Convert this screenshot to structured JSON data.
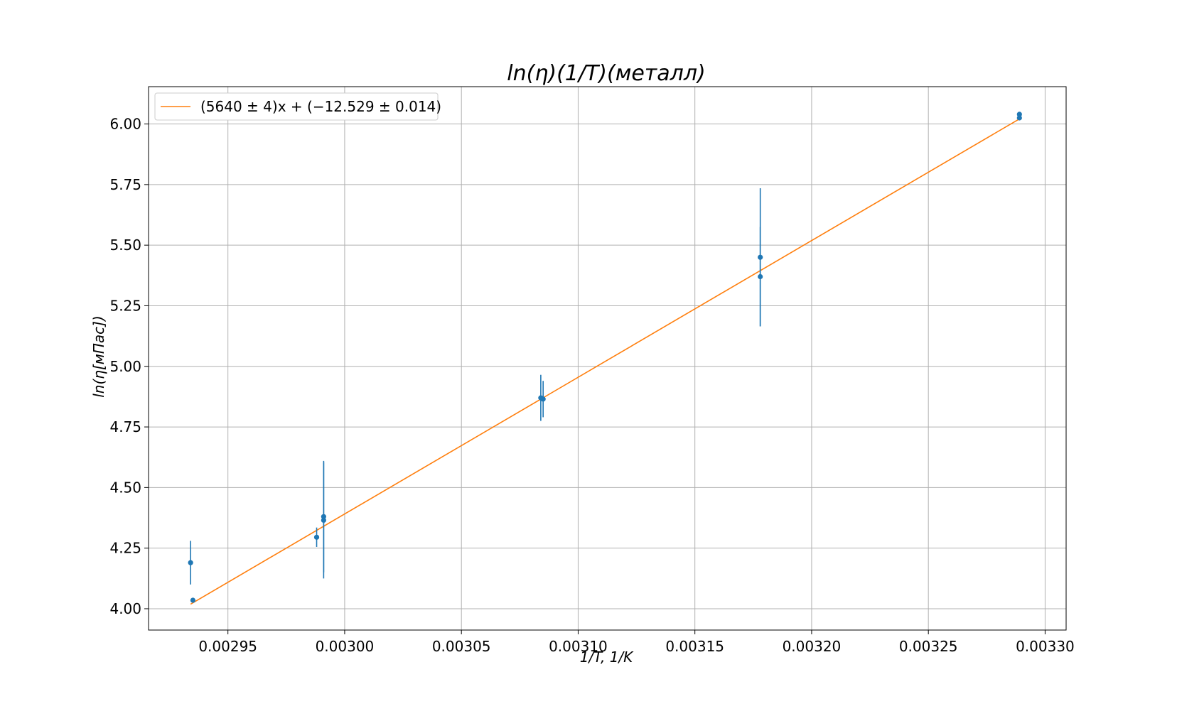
{
  "chart_data": {
    "type": "scatter",
    "title": "ln(η)(1/T)(металл)",
    "xlabel": "1/T, 1/K",
    "ylabel": "ln(η[мПас])",
    "xlim": [
      0.002916,
      0.003309
    ],
    "ylim": [
      3.912,
      6.154
    ],
    "xticks": [
      0.00295,
      0.003,
      0.00305,
      0.0031,
      0.00315,
      0.0032,
      0.00325,
      0.0033
    ],
    "xtick_labels": [
      "0.00295",
      "0.00300",
      "0.00305",
      "0.00310",
      "0.00315",
      "0.00320",
      "0.00325",
      "0.00330"
    ],
    "yticks": [
      4.0,
      4.25,
      4.5,
      4.75,
      5.0,
      5.25,
      5.5,
      5.75,
      6.0
    ],
    "ytick_labels": [
      "4.00",
      "4.25",
      "4.50",
      "4.75",
      "5.00",
      "5.25",
      "5.50",
      "5.75",
      "6.00"
    ],
    "grid": true,
    "legend_position": "top-left",
    "colors": {
      "points": "#1f77b4",
      "fit": "#ff7f0e"
    },
    "points": [
      {
        "x": 0.002934,
        "y": 4.19,
        "yerr": 0.09
      },
      {
        "x": 0.002935,
        "y": 4.035,
        "yerr": 0.01
      },
      {
        "x": 0.002988,
        "y": 4.295,
        "yerr": 0.04
      },
      {
        "x": 0.002991,
        "y": 4.38,
        "yerr": 0.23
      },
      {
        "x": 0.002991,
        "y": 4.365,
        "yerr": 0.24
      },
      {
        "x": 0.003084,
        "y": 4.87,
        "yerr": 0.095
      },
      {
        "x": 0.003085,
        "y": 4.865,
        "yerr": 0.075
      },
      {
        "x": 0.003178,
        "y": 5.45,
        "yerr": 0.285
      },
      {
        "x": 0.003178,
        "y": 5.37,
        "yerr": 0.205
      },
      {
        "x": 0.003289,
        "y": 6.04,
        "yerr": 0.005
      },
      {
        "x": 0.003289,
        "y": 6.025,
        "yerr": 0.005
      }
    ],
    "fit": {
      "label": "(5640 ± 4)x + (−12.529 ± 0.014)",
      "slope": 5640,
      "intercept": -12.529,
      "x_range": [
        0.002934,
        0.003289
      ]
    }
  }
}
